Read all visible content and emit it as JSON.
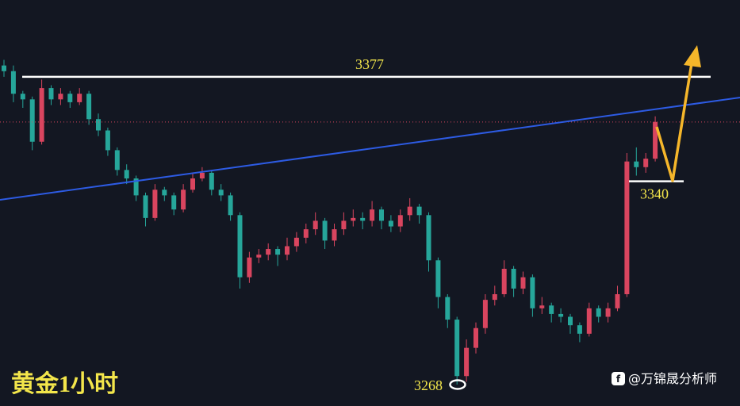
{
  "chart_data": {
    "type": "candlestick",
    "title": "黄金1小时",
    "watermark": "@万锦晟分析师",
    "up_color": "#d9455f",
    "down_color": "#26a69a",
    "ylim": [
      3260.4,
      3404.2
    ],
    "levels": [
      3377,
      3340
    ],
    "low_marker": 3268,
    "candles": [
      [
        3381,
        3383,
        3377,
        3379
      ],
      [
        3379,
        3381,
        3368,
        3371
      ],
      [
        3371,
        3372,
        3366,
        3369
      ],
      [
        3369,
        3370,
        3351,
        3354
      ],
      [
        3354,
        3376,
        3353,
        3373
      ],
      [
        3373,
        3374,
        3367,
        3369
      ],
      [
        3369,
        3373,
        3367,
        3371
      ],
      [
        3371,
        3372,
        3366,
        3368
      ],
      [
        3368,
        3373,
        3367,
        3371
      ],
      [
        3371,
        3372,
        3360,
        3362
      ],
      [
        3362,
        3364,
        3356,
        3358
      ],
      [
        3358,
        3359,
        3349,
        3351
      ],
      [
        3351,
        3352,
        3342,
        3344
      ],
      [
        3344,
        3346,
        3339,
        3341
      ],
      [
        3341,
        3342,
        3333,
        3335
      ],
      [
        3335,
        3336,
        3324,
        3327
      ],
      [
        3327,
        3339,
        3326,
        3337
      ],
      [
        3337,
        3338,
        3333,
        3335
      ],
      [
        3335,
        3336,
        3328,
        3330
      ],
      [
        3330,
        3339,
        3329,
        3337
      ],
      [
        3337,
        3343,
        3336,
        3341
      ],
      [
        3341,
        3345,
        3340,
        3343
      ],
      [
        3343,
        3344,
        3335,
        3337
      ],
      [
        3337,
        3339,
        3333,
        3335
      ],
      [
        3335,
        3336,
        3326,
        3328
      ],
      [
        3328,
        3329,
        3302,
        3306
      ],
      [
        3306,
        3315,
        3304,
        3313
      ],
      [
        3313,
        3316,
        3311,
        3314
      ],
      [
        3314,
        3318,
        3312,
        3316
      ],
      [
        3316,
        3317,
        3310,
        3314
      ],
      [
        3314,
        3320,
        3312,
        3317
      ],
      [
        3317,
        3322,
        3315,
        3320
      ],
      [
        3320,
        3325,
        3318,
        3323
      ],
      [
        3323,
        3329,
        3321,
        3326
      ],
      [
        3326,
        3327,
        3316,
        3319
      ],
      [
        3319,
        3325,
        3317,
        3323
      ],
      [
        3323,
        3329,
        3321,
        3326
      ],
      [
        3326,
        3330,
        3324,
        3327
      ],
      [
        3327,
        3329,
        3323,
        3326
      ],
      [
        3326,
        3333,
        3324,
        3330
      ],
      [
        3330,
        3331,
        3323,
        3326
      ],
      [
        3326,
        3328,
        3322,
        3324
      ],
      [
        3324,
        3330,
        3322,
        3328
      ],
      [
        3328,
        3334,
        3326,
        3331
      ],
      [
        3331,
        3332,
        3325,
        3328
      ],
      [
        3328,
        3329,
        3308,
        3312
      ],
      [
        3312,
        3313,
        3295,
        3299
      ],
      [
        3299,
        3300,
        3288,
        3291
      ],
      [
        3291,
        3292,
        3268,
        3271
      ],
      [
        3271,
        3284,
        3269,
        3281
      ],
      [
        3281,
        3290,
        3279,
        3288
      ],
      [
        3288,
        3300,
        3286,
        3298
      ],
      [
        3298,
        3303,
        3296,
        3300
      ],
      [
        3300,
        3312,
        3299,
        3309
      ],
      [
        3309,
        3310,
        3299,
        3302
      ],
      [
        3302,
        3308,
        3300,
        3306
      ],
      [
        3306,
        3307,
        3292,
        3295
      ],
      [
        3295,
        3299,
        3293,
        3296
      ],
      [
        3296,
        3297,
        3290,
        3293
      ],
      [
        3293,
        3295,
        3290,
        3292
      ],
      [
        3292,
        3293,
        3286,
        3289
      ],
      [
        3289,
        3290,
        3283,
        3286
      ],
      [
        3286,
        3297,
        3285,
        3295
      ],
      [
        3295,
        3296,
        3290,
        3292
      ],
      [
        3292,
        3297,
        3290,
        3295
      ],
      [
        3295,
        3303,
        3294,
        3300
      ],
      [
        3300,
        3350,
        3299,
        3347
      ],
      [
        3347,
        3352,
        3342,
        3345
      ],
      [
        3345,
        3350,
        3343,
        3348
      ],
      [
        3348,
        3363,
        3347,
        3361
      ]
    ]
  }
}
